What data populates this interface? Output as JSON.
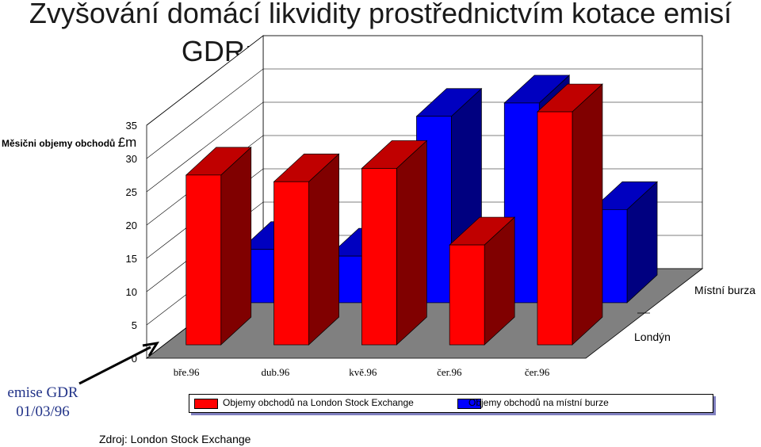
{
  "title": {
    "line1": "Zvyšování domácí likvidity prostřednictvím kotace emisí",
    "line2": "GDR: BorsodChem - Maďarsko"
  },
  "unit_label": {
    "text": "Měsični objemy obchodů",
    "currency": "£m"
  },
  "annotation": {
    "line1": "emise GDR",
    "line2": "01/03/96"
  },
  "source": "Zdroj: London Stock Exchange",
  "colors": {
    "london_front": "#ff0000",
    "london_side": "#800000",
    "london_top": "#c00000",
    "local_front": "#0000ff",
    "local_side": "#000080",
    "local_top": "#0000c0",
    "floor": "#808080",
    "arrow": "#000000"
  },
  "chart_data": {
    "type": "bar",
    "style": "3d-clustered-depth",
    "categories": [
      "bře.96",
      "dub.96",
      "kvě.96",
      "čer.96",
      "čer.96"
    ],
    "depth_labels": [
      "Londýn",
      "Místní burza"
    ],
    "series": [
      {
        "name": "Objemy obchodů na London Stock Exchange",
        "values": [
          25.5,
          24.5,
          26.5,
          15,
          35
        ]
      },
      {
        "name": "Objemy obchodů na místní burze",
        "values": [
          8,
          7,
          28,
          30,
          14
        ]
      }
    ],
    "yticks": [
      "0",
      "5",
      "10",
      "15",
      "20",
      "25",
      "30",
      "35"
    ],
    "ylim": [
      0,
      35
    ],
    "grid": true,
    "legend": "bottom"
  }
}
